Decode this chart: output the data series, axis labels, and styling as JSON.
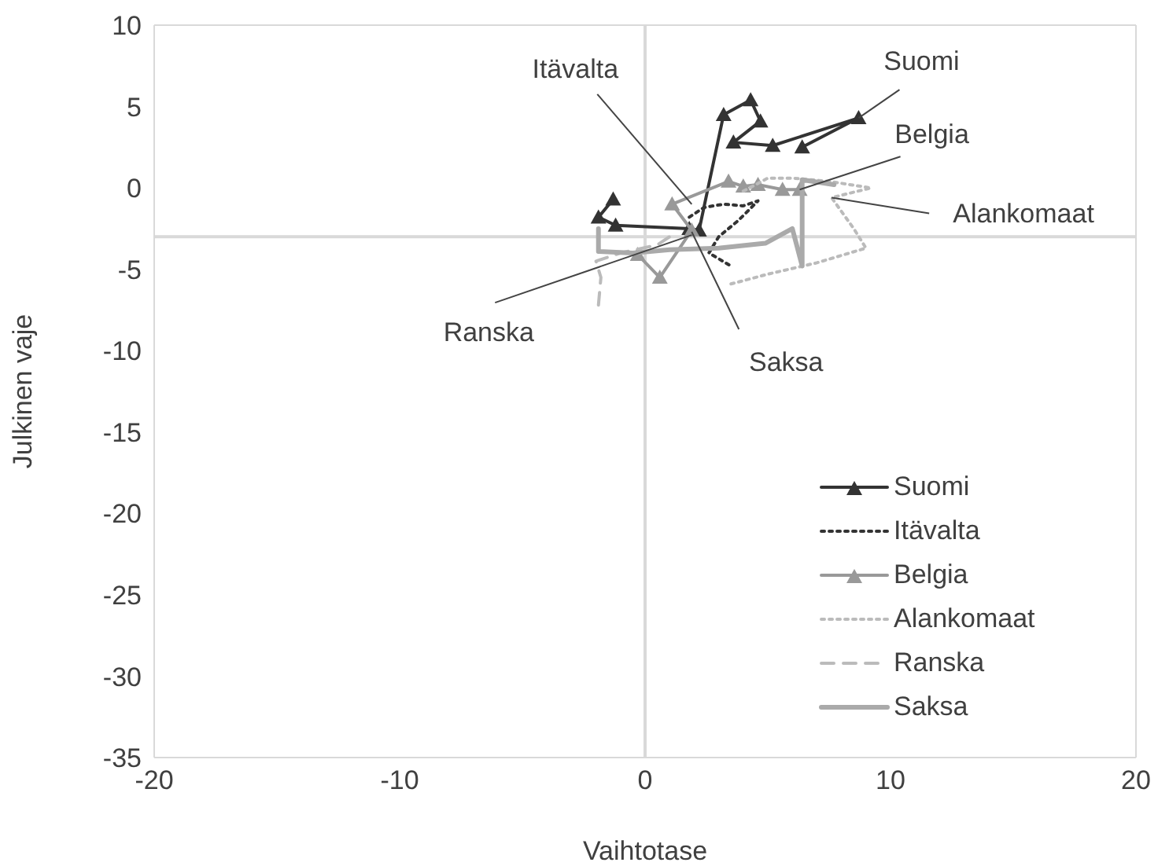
{
  "chart_data": {
    "type": "line",
    "xlabel": "Vaihtotase",
    "ylabel": "Julkinen vaje",
    "xlim": [
      -20,
      20
    ],
    "ylim": [
      -35,
      10
    ],
    "xticks": [
      -20,
      -10,
      0,
      10,
      20
    ],
    "yticks": [
      -35,
      -30,
      -25,
      -20,
      -15,
      -10,
      -5,
      0,
      5,
      10
    ],
    "legend": "bottom right",
    "series": [
      {
        "name": "Suomi",
        "color": "#333333",
        "marker": "triangle",
        "line_style": "solid",
        "x": [
          -1.3,
          -1.9,
          -1.2,
          1.8,
          2.2,
          3.2,
          4.3,
          4.7,
          3.6,
          5.2,
          8.7,
          6.4
        ],
        "values": [
          -0.7,
          -1.8,
          -2.3,
          -2.5,
          -2.6,
          4.5,
          5.4,
          4.1,
          2.8,
          2.6,
          4.3,
          2.5
        ]
      },
      {
        "name": "Itävalta",
        "color": "#333333",
        "marker": "none",
        "line_style": "dotted",
        "x": [
          1.8,
          2.4,
          3.2,
          4.0,
          4.6,
          3.8,
          3.0,
          2.6,
          3.5
        ],
        "values": [
          -1.8,
          -1.2,
          -1.0,
          -1.1,
          -0.8,
          -2.0,
          -3.0,
          -4.0,
          -4.8
        ]
      },
      {
        "name": "Belgia",
        "color": "#999999",
        "marker": "triangle",
        "line_style": "solid",
        "x": [
          -0.3,
          0.6,
          1.9,
          1.1,
          3.4,
          4.0,
          4.6,
          5.6,
          6.3
        ],
        "values": [
          -4.1,
          -5.5,
          -2.6,
          -1.0,
          0.4,
          0.1,
          0.2,
          -0.1,
          -0.1
        ]
      },
      {
        "name": "Alankomaat",
        "color": "#bbbbbb",
        "marker": "none",
        "line_style": "dotted",
        "x": [
          3.5,
          5.0,
          7.0,
          9.0,
          8.5,
          7.6,
          9.2,
          7.5,
          6.0,
          5.0,
          4.0
        ],
        "values": [
          -5.9,
          -5.3,
          -4.6,
          -3.7,
          -2.5,
          -0.6,
          0.0,
          0.4,
          0.6,
          0.6,
          -0.2
        ]
      },
      {
        "name": "Ranska",
        "color": "#bbbbbb",
        "marker": "none",
        "line_style": "dashed",
        "x": [
          -1.9,
          -1.8,
          -2.0,
          -1.0,
          0.5,
          1.0
        ],
        "values": [
          -7.2,
          -5.5,
          -4.5,
          -4.0,
          -3.5,
          -3.0
        ]
      },
      {
        "name": "Saksa",
        "color": "#aaaaaa",
        "marker": "none",
        "line_style": "solid",
        "x": [
          -1.9,
          -1.9,
          -0.5,
          1.0,
          3.0,
          4.9,
          6.0,
          6.4,
          6.4,
          6.4,
          7.7
        ],
        "values": [
          -2.5,
          -3.9,
          -4.0,
          -3.8,
          -3.7,
          -3.4,
          -2.5,
          -4.8,
          -1.0,
          0.5,
          0.2
        ]
      }
    ],
    "ref_lines": [
      {
        "axis": "x",
        "value": 0,
        "color": "#d9d9d9"
      },
      {
        "axis": "y",
        "value": -3,
        "color": "#d9d9d9"
      }
    ],
    "annotations": [
      {
        "text": "Suomi",
        "x": 8.7,
        "y": 4.3
      },
      {
        "text": "Itävalta",
        "x": 1.9,
        "y": -1.0
      },
      {
        "text": "Belgia",
        "x": 6.3,
        "y": -0.1
      },
      {
        "text": "Alankomaat",
        "x": 7.6,
        "y": -0.6
      },
      {
        "text": "Ranska",
        "x": 1.9,
        "y": -2.9
      },
      {
        "text": "Saksa",
        "x": 1.9,
        "y": -2.7
      }
    ]
  }
}
